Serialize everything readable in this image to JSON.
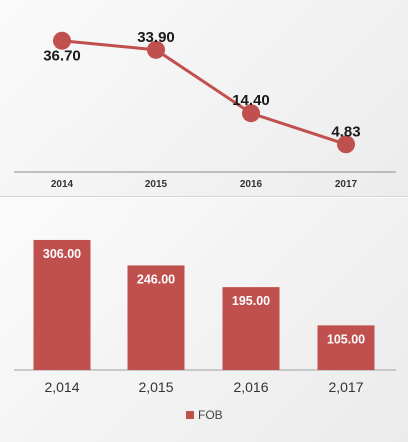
{
  "chart_data": [
    {
      "type": "line",
      "categories": [
        "2014",
        "2015",
        "2016",
        "2017"
      ],
      "values": [
        36.7,
        33.9,
        14.4,
        4.83
      ],
      "data_labels": [
        "36.70",
        "33.90",
        "14.40",
        "4.83"
      ],
      "ylim": [
        0,
        40
      ],
      "grid": false,
      "color": "#c0504d"
    },
    {
      "type": "bar",
      "categories": [
        "2,014",
        "2,015",
        "2,016",
        "2,017"
      ],
      "series": [
        {
          "name": "FOB",
          "values": [
            306.0,
            246.0,
            195.0,
            105.0
          ]
        }
      ],
      "data_labels": [
        "306.00",
        "246.00",
        "195.00",
        "105.00"
      ],
      "ylim": [
        0,
        320
      ],
      "grid": false,
      "legend": "bottom",
      "color": "#c0504d"
    }
  ]
}
